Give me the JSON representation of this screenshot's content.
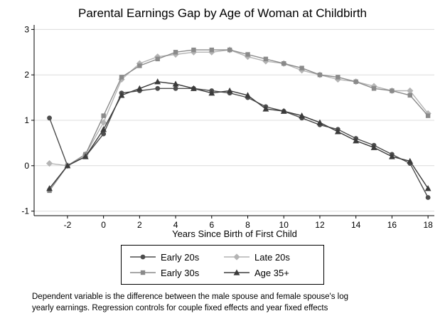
{
  "chart_data": {
    "type": "line",
    "title": "Parental Earnings Gap by Age of Woman at Childbirth",
    "xlabel": "Years Since Birth of First Child",
    "ylabel": "",
    "xlim": [
      -3.85,
      18.35
    ],
    "ylim": [
      -1.1,
      3.1
    ],
    "xticks": [
      -2,
      0,
      2,
      4,
      6,
      8,
      10,
      12,
      14,
      16,
      18
    ],
    "yticks": [
      -1,
      0,
      1,
      2,
      3
    ],
    "grid": true,
    "legend_position": "bottom",
    "x": [
      -3,
      -2,
      -1,
      0,
      1,
      2,
      3,
      4,
      5,
      6,
      7,
      8,
      9,
      10,
      11,
      12,
      13,
      14,
      15,
      16,
      17,
      18
    ],
    "series": [
      {
        "name": "Early 20s",
        "marker": "circle",
        "color": "#4d4d4d",
        "values": [
          1.05,
          0.0,
          0.2,
          0.7,
          1.6,
          1.65,
          1.7,
          1.7,
          1.7,
          1.65,
          1.6,
          1.5,
          1.3,
          1.2,
          1.05,
          0.9,
          0.8,
          0.6,
          0.45,
          0.25,
          0.05,
          -0.7
        ]
      },
      {
        "name": "Late 20s",
        "marker": "diamond",
        "color": "#b4b4b4",
        "values": [
          0.05,
          0.0,
          0.25,
          0.95,
          1.9,
          2.25,
          2.4,
          2.45,
          2.5,
          2.5,
          2.55,
          2.4,
          2.3,
          2.25,
          2.1,
          2.0,
          1.9,
          1.85,
          1.75,
          1.65,
          1.65,
          1.15
        ]
      },
      {
        "name": "Early 30s",
        "marker": "square",
        "color": "#8a8a8a",
        "values": [
          -0.55,
          0.0,
          0.25,
          1.1,
          1.95,
          2.2,
          2.35,
          2.5,
          2.55,
          2.55,
          2.55,
          2.45,
          2.35,
          2.25,
          2.15,
          2.0,
          1.95,
          1.85,
          1.7,
          1.65,
          1.55,
          1.1
        ]
      },
      {
        "name": "Age 35+",
        "marker": "triangle",
        "color": "#3b3b3b",
        "values": [
          -0.5,
          0.0,
          0.2,
          0.8,
          1.55,
          1.7,
          1.85,
          1.8,
          1.7,
          1.6,
          1.65,
          1.55,
          1.25,
          1.2,
          1.1,
          0.95,
          0.75,
          0.55,
          0.4,
          0.2,
          0.1,
          -0.5
        ]
      }
    ]
  },
  "note": [
    "Dependent variable is the difference between the male spouse and female spouse's log",
    "yearly earnings. Regression controls for couple fixed effects and year fixed effects"
  ]
}
